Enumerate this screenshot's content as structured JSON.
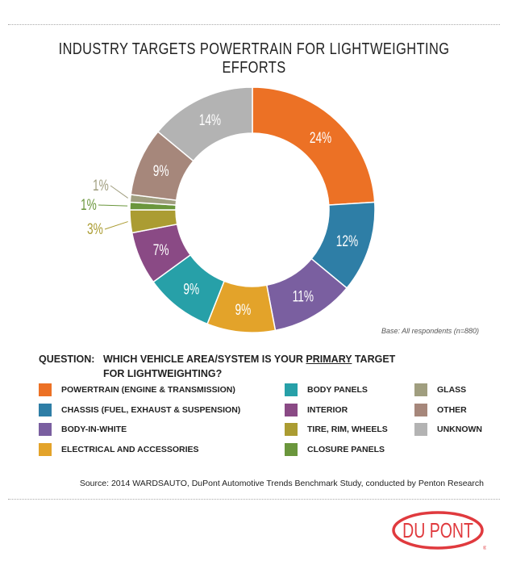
{
  "chart_data": {
    "type": "pie",
    "subtype": "donut",
    "title": "INDUSTRY TARGETS POWERTRAIN FOR LIGHTWEIGHTING EFFORTS",
    "slices": [
      {
        "name": "POWERTRAIN (ENGINE & TRANSMISSION)",
        "value": 24,
        "label": "24%",
        "color": "#ec7125"
      },
      {
        "name": "CHASSIS (FUEL, EXHAUST & SUSPENSION)",
        "value": 12,
        "label": "12%",
        "color": "#2e7ea6"
      },
      {
        "name": "BODY-IN-WHITE",
        "value": 11,
        "label": "11%",
        "color": "#7a5fa0"
      },
      {
        "name": "ELECTRICAL AND ACCESSORIES",
        "value": 9,
        "label": "9%",
        "color": "#e3a32a"
      },
      {
        "name": "BODY PANELS",
        "value": 9,
        "label": "9%",
        "color": "#27a0a8"
      },
      {
        "name": "INTERIOR",
        "value": 7,
        "label": "7%",
        "color": "#8a4a85"
      },
      {
        "name": "TIRE, RIM, WHEELS",
        "value": 3,
        "label": "3%",
        "color": "#ab9c32"
      },
      {
        "name": "CLOSURE PANELS",
        "value": 1,
        "label": "1%",
        "color": "#6a963c"
      },
      {
        "name": "GLASS",
        "value": 1,
        "label": "1%",
        "color": "#a09e7f"
      },
      {
        "name": "OTHER",
        "value": 9,
        "label": "9%",
        "color": "#a6877b"
      },
      {
        "name": "UNKNOWN",
        "value": 14,
        "label": "14%",
        "color": "#b3b3b3"
      }
    ],
    "note": "Base: All respondents (n=880)"
  },
  "question": {
    "prefix": "QUESTION:",
    "line1a": "WHICH VEHICLE AREA/SYSTEM IS YOUR ",
    "emph": "PRIMARY",
    "line1b": " TARGET",
    "line2": "FOR LIGHTWEIGHTING?"
  },
  "source": "Source: 2014 WARDSAUTO, DuPont Automotive Trends Benchmark Study, conducted by Penton Research",
  "logo": "DUPONT"
}
